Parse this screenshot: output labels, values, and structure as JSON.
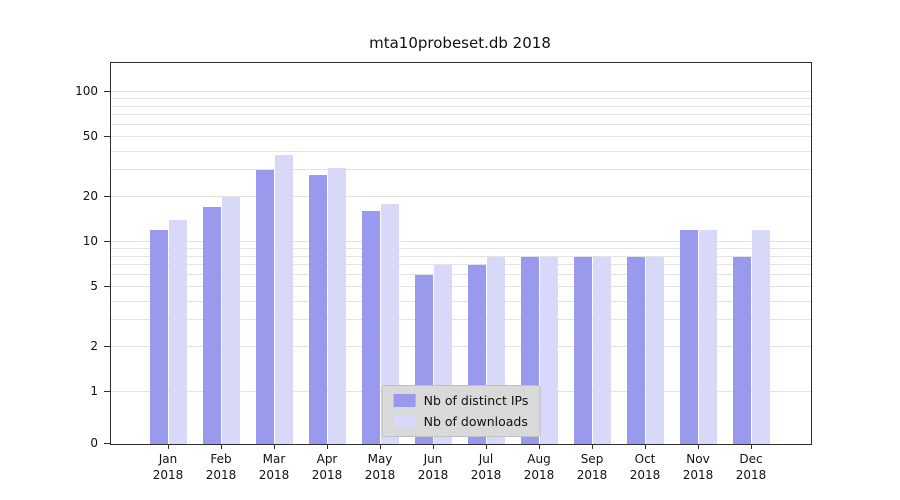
{
  "chart_data": {
    "type": "bar",
    "title": "mta10probeset.db 2018",
    "categories": [
      "Jan",
      "Feb",
      "Mar",
      "Apr",
      "May",
      "Jun",
      "Jul",
      "Aug",
      "Sep",
      "Oct",
      "Nov",
      "Dec"
    ],
    "year_label": "2018",
    "series": [
      {
        "name": "Nb of distinct IPs",
        "color": "#9999ed",
        "values": [
          12,
          17,
          30,
          28,
          16,
          6,
          7,
          8,
          8,
          8,
          12,
          8
        ]
      },
      {
        "name": "Nb of downloads",
        "color": "#d8d8f8",
        "values": [
          14,
          20,
          38,
          31,
          18,
          7,
          8,
          8,
          8,
          8,
          12,
          12
        ]
      }
    ],
    "yticks": [
      0,
      1,
      2,
      5,
      10,
      20,
      50,
      100
    ],
    "yscale": "symlog",
    "ylim": [
      0,
      160
    ],
    "grid": true,
    "legend_position": "lower center"
  }
}
